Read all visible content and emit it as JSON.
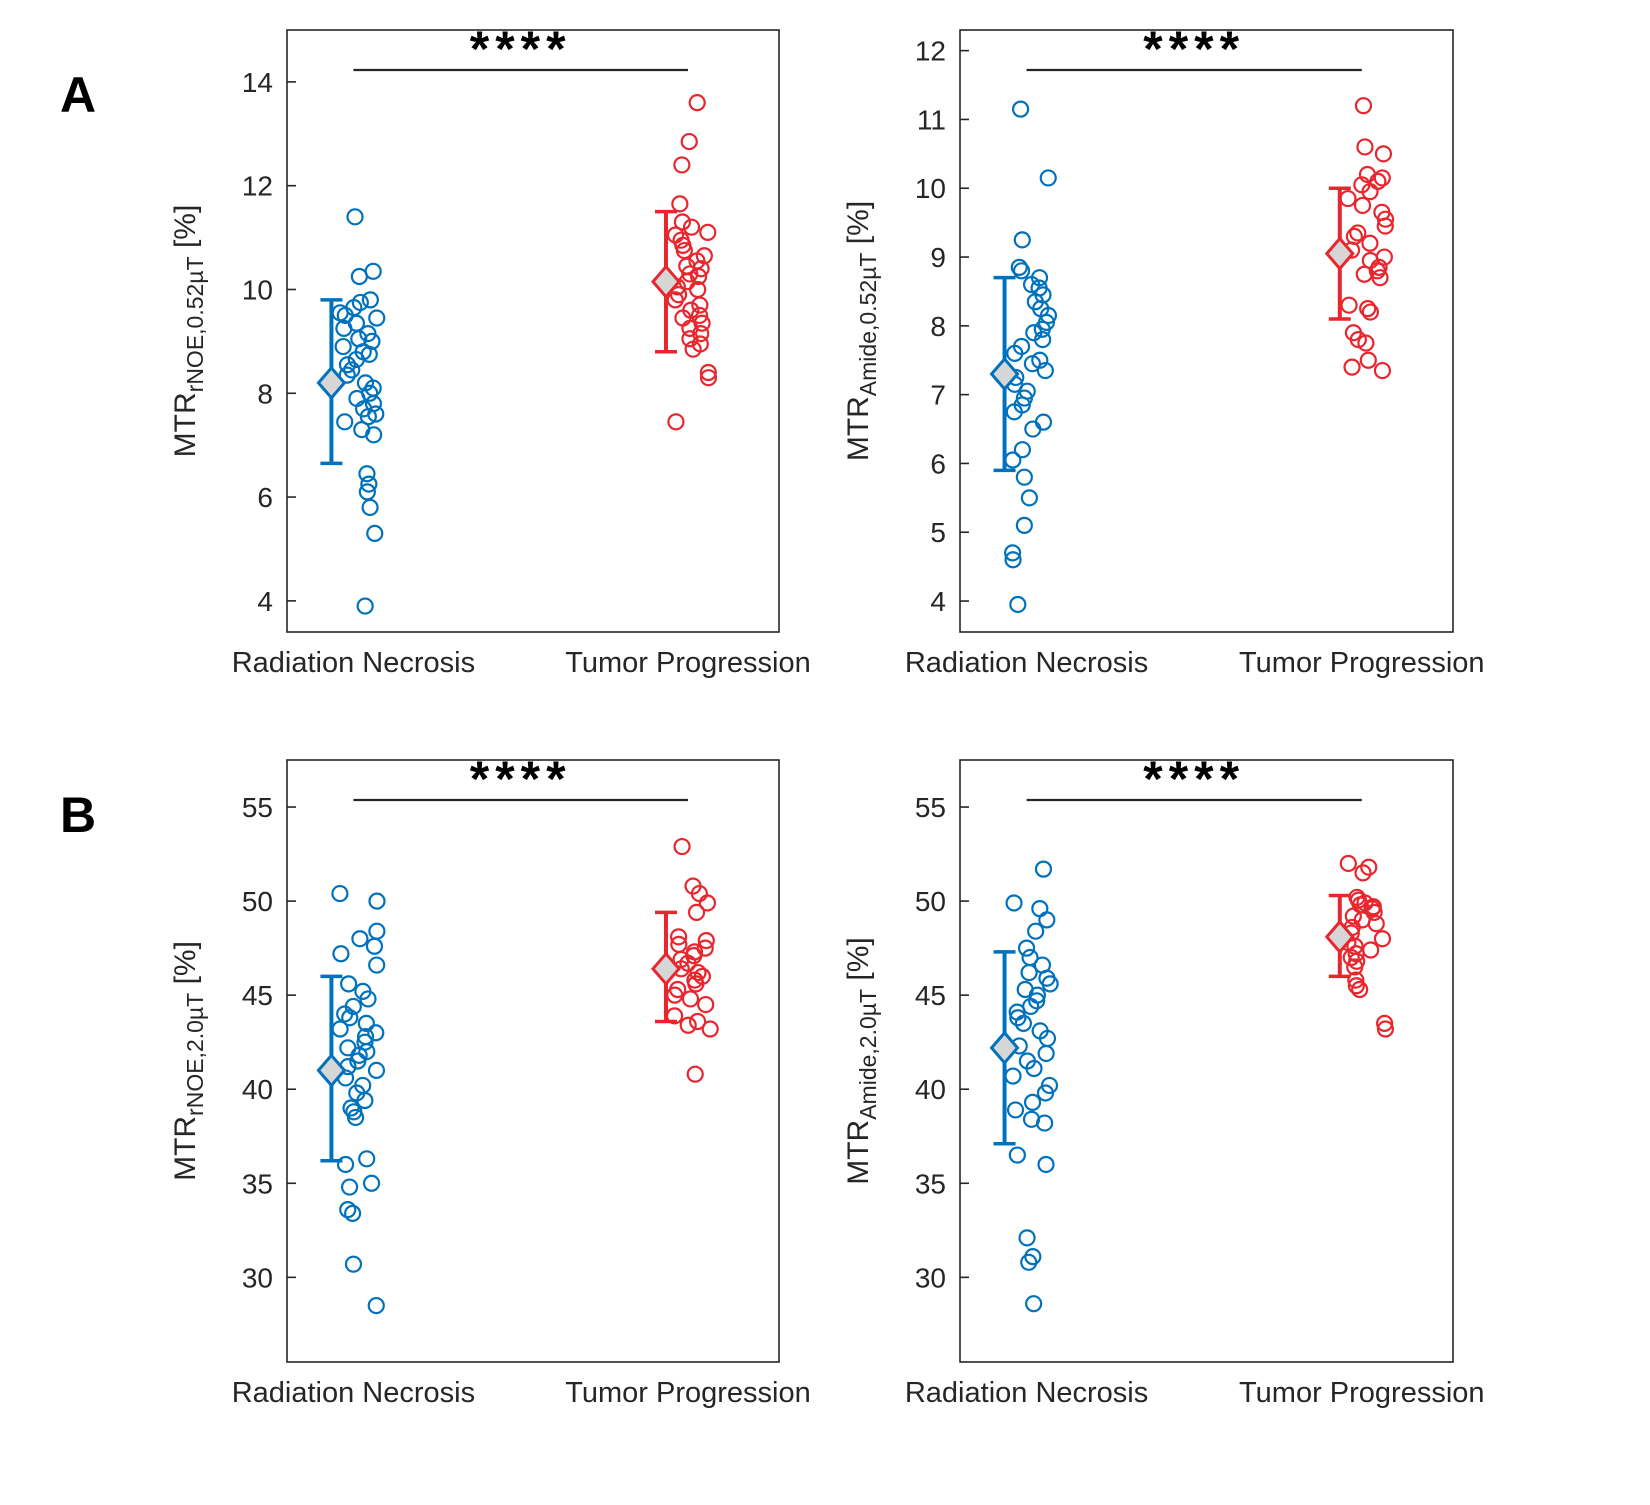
{
  "figure": {
    "row_labels": [
      "A",
      "B"
    ],
    "categories": [
      "Radiation Necrosis",
      "Tumor Progression"
    ],
    "significance_label": "****",
    "colors": {
      "radiation_necrosis": "#0072BD",
      "tumor_progression": "#E8262D",
      "diamond_fill": "#D6D6D6",
      "axis": "#262626"
    }
  },
  "chart_data": [
    {
      "id": "MTR_rNOE_0.52uT",
      "type": "scatter",
      "row_label": "A",
      "ylabel": "MTR rNOE,0.52µT [%]",
      "ylabel_parts": {
        "pre": "MTR",
        "sub": "rNOE,0.52µT",
        "post": " [%]"
      },
      "ylim": [
        3.4,
        15.0
      ],
      "yticks": [
        4,
        6,
        8,
        10,
        12,
        14
      ],
      "significance": "****",
      "categories": [
        "Radiation Necrosis",
        "Tumor Progression"
      ],
      "series": [
        {
          "name": "Radiation Necrosis",
          "color": "#0072BD",
          "mean": 8.2,
          "err_low": 6.65,
          "err_high": 9.8,
          "values": [
            11.4,
            10.35,
            10.25,
            9.8,
            9.75,
            9.65,
            9.55,
            9.5,
            9.45,
            9.35,
            9.25,
            9.15,
            9.05,
            9.0,
            8.9,
            8.8,
            8.75,
            8.65,
            8.55,
            8.45,
            8.35,
            8.2,
            8.1,
            8.0,
            7.9,
            7.8,
            7.7,
            7.6,
            7.55,
            7.45,
            7.3,
            7.2,
            6.45,
            6.25,
            6.1,
            5.8,
            5.3,
            3.9
          ]
        },
        {
          "name": "Tumor Progression",
          "color": "#E8262D",
          "mean": 10.15,
          "err_low": 8.8,
          "err_high": 11.5,
          "values": [
            13.6,
            12.85,
            12.4,
            11.65,
            11.3,
            11.2,
            11.1,
            11.05,
            10.95,
            10.85,
            10.75,
            10.65,
            10.55,
            10.45,
            10.4,
            10.3,
            10.25,
            10.15,
            10.05,
            10.0,
            9.9,
            9.8,
            9.7,
            9.6,
            9.5,
            9.45,
            9.35,
            9.25,
            9.15,
            9.05,
            8.95,
            8.85,
            8.4,
            8.3,
            7.45
          ]
        }
      ]
    },
    {
      "id": "MTR_Amide_0.52uT",
      "type": "scatter",
      "row_label": "A",
      "ylabel": "MTR Amide,0.52µT [%]",
      "ylabel_parts": {
        "pre": "MTR",
        "sub": "Amide,0.52µT",
        "post": " [%]"
      },
      "ylim": [
        3.55,
        12.3
      ],
      "yticks": [
        4,
        5,
        6,
        7,
        8,
        9,
        10,
        11,
        12
      ],
      "significance": "****",
      "categories": [
        "Radiation Necrosis",
        "Tumor Progression"
      ],
      "series": [
        {
          "name": "Radiation Necrosis",
          "color": "#0072BD",
          "mean": 7.3,
          "err_low": 5.9,
          "err_high": 8.7,
          "values": [
            11.15,
            10.15,
            9.25,
            8.85,
            8.8,
            8.7,
            8.6,
            8.55,
            8.45,
            8.35,
            8.25,
            8.15,
            8.05,
            7.95,
            7.9,
            7.8,
            7.7,
            7.6,
            7.5,
            7.45,
            7.35,
            7.25,
            7.15,
            7.05,
            6.95,
            6.85,
            6.75,
            6.6,
            6.5,
            6.2,
            6.05,
            5.8,
            5.5,
            5.1,
            4.7,
            4.6,
            3.95
          ]
        },
        {
          "name": "Tumor Progression",
          "color": "#E8262D",
          "mean": 9.05,
          "err_low": 8.1,
          "err_high": 10.0,
          "values": [
            11.2,
            10.6,
            10.5,
            10.2,
            10.15,
            10.1,
            10.05,
            9.95,
            9.85,
            9.75,
            9.65,
            9.55,
            9.45,
            9.35,
            9.3,
            9.2,
            9.1,
            9.0,
            8.95,
            8.85,
            8.8,
            8.75,
            8.7,
            8.3,
            8.25,
            8.2,
            7.9,
            7.8,
            7.75,
            7.5,
            7.4,
            7.35
          ]
        }
      ]
    },
    {
      "id": "MTR_rNOE_2.0uT",
      "type": "scatter",
      "row_label": "B",
      "ylabel": "MTR rNOE,2.0µT [%]",
      "ylabel_parts": {
        "pre": "MTR",
        "sub": "rNOE,2.0µT",
        "post": " [%]"
      },
      "ylim": [
        25.5,
        57.5
      ],
      "yticks": [
        30,
        35,
        40,
        45,
        50,
        55
      ],
      "significance": "****",
      "categories": [
        "Radiation Necrosis",
        "Tumor Progression"
      ],
      "series": [
        {
          "name": "Radiation Necrosis",
          "color": "#0072BD",
          "mean": 41.0,
          "err_low": 36.2,
          "err_high": 46.0,
          "values": [
            50.4,
            50.0,
            48.4,
            48.0,
            47.6,
            47.2,
            46.6,
            45.6,
            45.2,
            44.8,
            44.4,
            44.0,
            43.8,
            43.5,
            43.2,
            43.0,
            42.8,
            42.5,
            42.2,
            42.0,
            41.8,
            41.5,
            41.2,
            41.0,
            40.6,
            40.2,
            39.8,
            39.4,
            39.0,
            38.8,
            38.5,
            36.3,
            36.0,
            35.0,
            34.8,
            33.6,
            33.4,
            30.7,
            28.5
          ]
        },
        {
          "name": "Tumor Progression",
          "color": "#E8262D",
          "mean": 46.4,
          "err_low": 43.6,
          "err_high": 49.4,
          "values": [
            52.9,
            50.8,
            50.4,
            49.9,
            49.4,
            48.1,
            47.9,
            47.7,
            47.5,
            47.3,
            47.1,
            46.9,
            46.7,
            46.4,
            46.2,
            46.0,
            45.8,
            45.6,
            45.3,
            45.0,
            44.8,
            44.5,
            43.9,
            43.6,
            43.4,
            43.2,
            40.8
          ]
        }
      ]
    },
    {
      "id": "MTR_Amide_2.0uT",
      "type": "scatter",
      "row_label": "B",
      "ylabel": "MTR Amide,2.0µT [%]",
      "ylabel_parts": {
        "pre": "MTR",
        "sub": "Amide,2.0µT",
        "post": " [%]"
      },
      "ylim": [
        25.5,
        57.5
      ],
      "yticks": [
        30,
        35,
        40,
        45,
        50,
        55
      ],
      "significance": "****",
      "categories": [
        "Radiation Necrosis",
        "Tumor Progression"
      ],
      "series": [
        {
          "name": "Radiation Necrosis",
          "color": "#0072BD",
          "mean": 42.2,
          "err_low": 37.1,
          "err_high": 47.3,
          "values": [
            51.7,
            49.9,
            49.6,
            49.0,
            48.4,
            47.5,
            47.0,
            46.6,
            46.2,
            45.9,
            45.6,
            45.3,
            45.0,
            44.7,
            44.4,
            44.1,
            43.8,
            43.5,
            43.1,
            42.7,
            42.3,
            41.9,
            41.5,
            41.1,
            40.7,
            40.2,
            39.8,
            39.3,
            38.9,
            38.4,
            38.2,
            36.5,
            36.0,
            32.1,
            31.1,
            30.8,
            28.6
          ]
        },
        {
          "name": "Tumor Progression",
          "color": "#E8262D",
          "mean": 48.1,
          "err_low": 46.0,
          "err_high": 50.3,
          "values": [
            52.0,
            51.8,
            51.5,
            50.2,
            50.05,
            49.9,
            49.8,
            49.7,
            49.6,
            49.4,
            49.2,
            49.0,
            48.8,
            48.6,
            48.3,
            48.0,
            47.8,
            47.6,
            47.4,
            47.2,
            47.0,
            46.8,
            46.5,
            45.8,
            45.5,
            45.3,
            43.5,
            43.2
          ]
        }
      ]
    }
  ]
}
